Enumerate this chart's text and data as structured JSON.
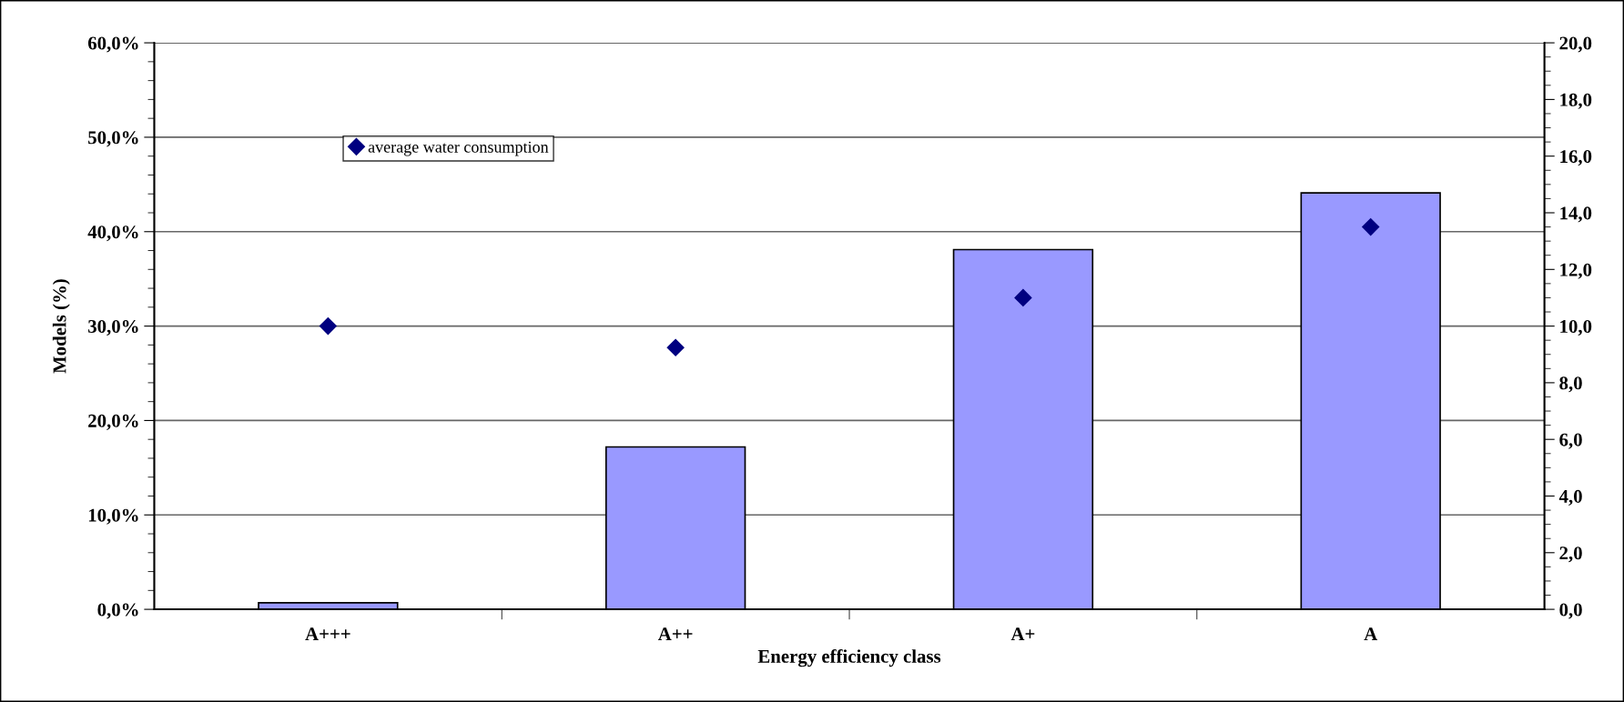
{
  "chart_data": {
    "type": "bar",
    "xlabel": "Energy efficiency class",
    "ylabel": "Models (%)",
    "categories": [
      "A+++",
      "A++",
      "A+",
      "A"
    ],
    "series": [
      {
        "color": "#9999ff",
        "values": [
          0.7,
          17.2,
          38.1,
          44.1
        ]
      },
      {
        "type": "scatter",
        "name": "average water consumption",
        "color": "#000080",
        "axis": "y2",
        "marker": "diamond",
        "values": [
          10.0,
          9.24,
          11.0,
          13.5
        ]
      }
    ],
    "ylim": [
      0,
      60
    ],
    "yticks": [
      {
        "value": 0,
        "label": "0,0%"
      },
      {
        "value": 10,
        "label": "10,0%"
      },
      {
        "value": 20,
        "label": "20,0%"
      },
      {
        "value": 30,
        "label": "30,0%"
      },
      {
        "value": 40,
        "label": "40,0%"
      },
      {
        "value": 50,
        "label": "50,0%"
      },
      {
        "value": 60,
        "label": "60,0%"
      }
    ],
    "y2lim": [
      0,
      20
    ],
    "y2ticks": [
      {
        "value": 0,
        "label": "0,0"
      },
      {
        "value": 2,
        "label": "2,0"
      },
      {
        "value": 4,
        "label": "4,0"
      },
      {
        "value": 6,
        "label": "6,0"
      },
      {
        "value": 8,
        "label": "8,0"
      },
      {
        "value": 10,
        "label": "10,0"
      },
      {
        "value": 12,
        "label": "12,0"
      },
      {
        "value": 14,
        "label": "14,0"
      },
      {
        "value": 16,
        "label": "16,0"
      },
      {
        "value": 18,
        "label": "18,0"
      },
      {
        "value": 20,
        "label": "20,0"
      }
    ],
    "grid": "y",
    "legend": "top left"
  }
}
